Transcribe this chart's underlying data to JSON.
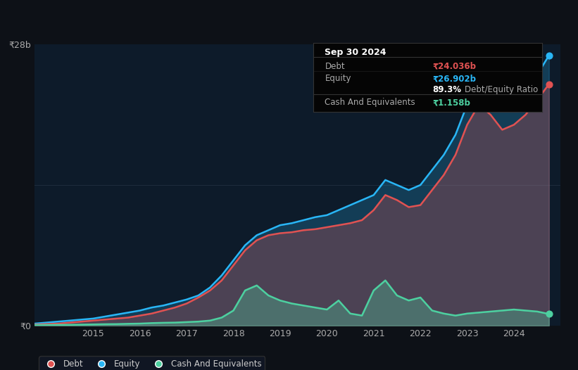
{
  "background_color": "#0d1117",
  "plot_bg_color": "#0d1b2a",
  "ylabel_top": "₹28b",
  "ylabel_bottom": "₹0",
  "debt_color": "#e05252",
  "equity_color": "#29b6f6",
  "cash_color": "#4dd0a0",
  "annotation_box": {
    "date": "Sep 30 2024",
    "debt_label": "Debt",
    "debt_value": "₹24.036b",
    "debt_value_color": "#e05252",
    "equity_label": "Equity",
    "equity_value": "₹26.902b",
    "equity_value_color": "#29b6f6",
    "ratio_bold": "89.3%",
    "ratio_text": " Debt/Equity Ratio",
    "cash_label": "Cash And Equivalents",
    "cash_value": "₹1.158b",
    "cash_value_color": "#4dd0a0",
    "bg_color": "#050505",
    "border_color": "#333333",
    "text_color": "#aaaaaa"
  },
  "times": [
    2013.75,
    2014.0,
    2014.25,
    2014.5,
    2014.75,
    2015.0,
    2015.25,
    2015.5,
    2015.75,
    2016.0,
    2016.25,
    2016.5,
    2016.75,
    2017.0,
    2017.25,
    2017.5,
    2017.75,
    2018.0,
    2018.25,
    2018.5,
    2018.75,
    2019.0,
    2019.25,
    2019.5,
    2019.75,
    2020.0,
    2020.25,
    2020.5,
    2020.75,
    2021.0,
    2021.25,
    2021.5,
    2021.75,
    2022.0,
    2022.25,
    2022.5,
    2022.75,
    2023.0,
    2023.25,
    2023.5,
    2023.75,
    2024.0,
    2024.25,
    2024.5,
    2024.75
  ],
  "debt": [
    0.1,
    0.15,
    0.2,
    0.3,
    0.4,
    0.5,
    0.6,
    0.7,
    0.8,
    1.0,
    1.2,
    1.5,
    1.8,
    2.2,
    2.8,
    3.5,
    4.5,
    6.0,
    7.5,
    8.5,
    9.0,
    9.2,
    9.3,
    9.5,
    9.6,
    9.8,
    10.0,
    10.2,
    10.5,
    11.5,
    13.0,
    12.5,
    11.8,
    12.0,
    13.5,
    15.0,
    17.0,
    20.0,
    22.0,
    21.0,
    19.5,
    20.0,
    21.0,
    22.5,
    24.036
  ],
  "equity": [
    0.2,
    0.3,
    0.4,
    0.5,
    0.6,
    0.7,
    0.9,
    1.1,
    1.3,
    1.5,
    1.8,
    2.0,
    2.3,
    2.6,
    3.0,
    3.8,
    5.0,
    6.5,
    8.0,
    9.0,
    9.5,
    10.0,
    10.2,
    10.5,
    10.8,
    11.0,
    11.5,
    12.0,
    12.5,
    13.0,
    14.5,
    14.0,
    13.5,
    14.0,
    15.5,
    17.0,
    19.0,
    22.0,
    24.0,
    23.5,
    22.0,
    22.5,
    23.5,
    25.0,
    26.902
  ],
  "cash": [
    0.05,
    0.06,
    0.07,
    0.08,
    0.1,
    0.12,
    0.14,
    0.15,
    0.18,
    0.2,
    0.25,
    0.28,
    0.3,
    0.35,
    0.4,
    0.5,
    0.8,
    1.5,
    3.5,
    4.0,
    3.0,
    2.5,
    2.2,
    2.0,
    1.8,
    1.6,
    2.5,
    1.2,
    1.0,
    3.5,
    4.5,
    3.0,
    2.5,
    2.8,
    1.5,
    1.2,
    1.0,
    1.2,
    1.3,
    1.4,
    1.5,
    1.6,
    1.5,
    1.4,
    1.158
  ],
  "ylim": [
    0,
    28
  ],
  "xlim": [
    2013.75,
    2025.0
  ],
  "figsize": [
    8.21,
    5.26
  ],
  "dpi": 100
}
